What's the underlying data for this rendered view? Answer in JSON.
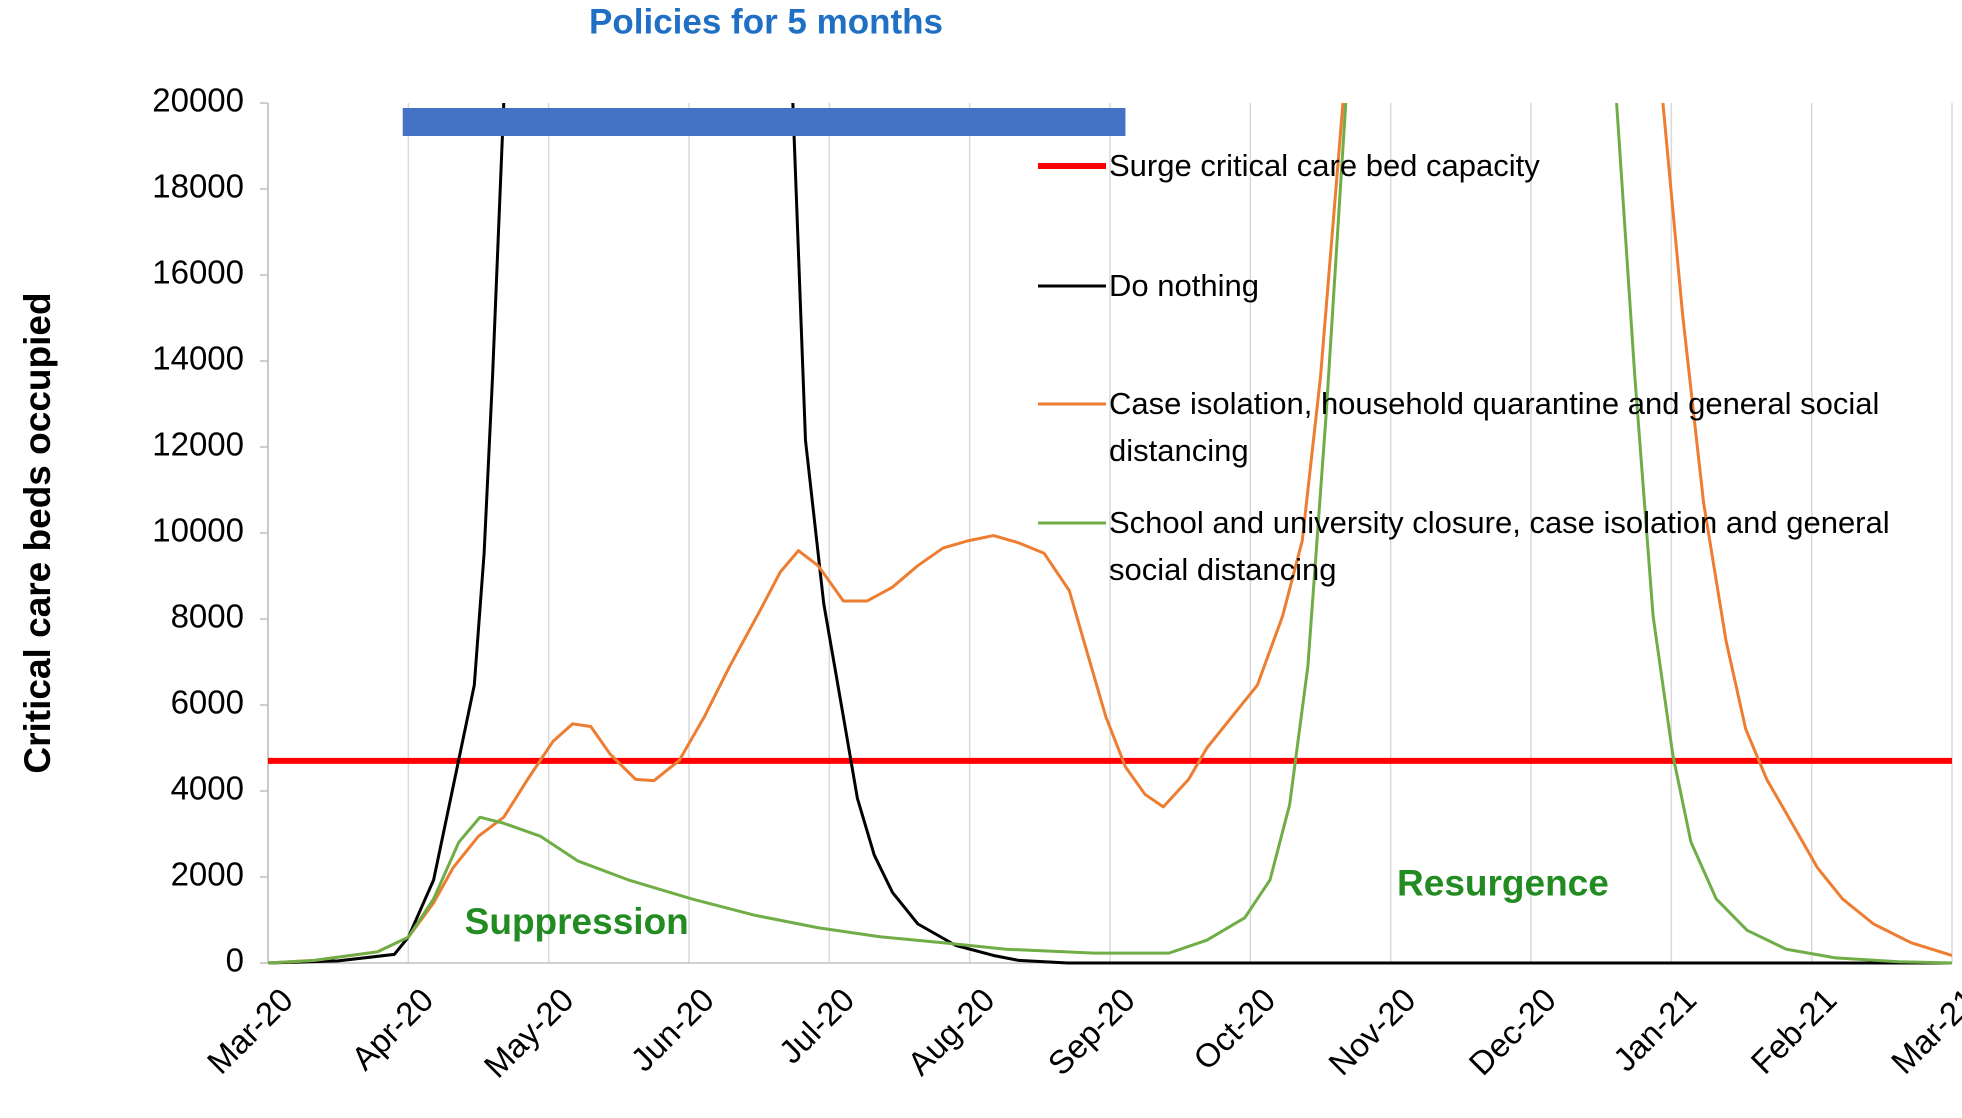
{
  "chart_data": {
    "type": "line",
    "title": "Policies for 5 months",
    "y_label": "Critical care beds occupied",
    "xlim": [
      0,
      12
    ],
    "xticks": [
      {
        "value": 0,
        "label": "Mar-20"
      },
      {
        "value": 1,
        "label": "Apr-20"
      },
      {
        "value": 2,
        "label": "May-20"
      },
      {
        "value": 3,
        "label": "Jun-20"
      },
      {
        "value": 4,
        "label": "Jul-20"
      },
      {
        "value": 5,
        "label": "Aug-20"
      },
      {
        "value": 6,
        "label": "Sep-20"
      },
      {
        "value": 7,
        "label": "Oct-20"
      },
      {
        "value": 8,
        "label": "Nov-20"
      },
      {
        "value": 9,
        "label": "Dec-20"
      },
      {
        "value": 10,
        "label": "Jan-21"
      },
      {
        "value": 11,
        "label": "Feb-21"
      },
      {
        "value": 12,
        "label": "Mar-21"
      }
    ],
    "ylim": [
      0,
      20000
    ],
    "yticks": [
      0,
      2000,
      4000,
      6000,
      8000,
      10000,
      12000,
      14000,
      16000,
      18000,
      20000
    ],
    "x_grid": true,
    "legend": "upper right",
    "policy_period": {
      "x": [
        0.96,
        6.11
      ],
      "color": "#4472c4"
    },
    "annotations": [
      {
        "text": "Suppression",
        "x": 2.2,
        "y": 900,
        "color": "#228b22"
      },
      {
        "text": "Resurgence",
        "x": 8.8,
        "y": 1800,
        "color": "#228b22"
      }
    ],
    "series": [
      {
        "name": "Surge critical care bed capacity",
        "color": "#ff0000",
        "width": 6,
        "x": [
          0,
          12
        ],
        "values": [
          4700,
          4700
        ]
      },
      {
        "name": "Do nothing",
        "color": "#000000",
        "width": 3,
        "x": [
          0,
          0.5,
          0.9,
          1.0,
          1.18,
          1.33,
          1.47,
          1.54,
          1.6,
          1.68,
          null,
          3.74,
          3.83,
          3.96,
          4.1,
          4.2,
          4.32,
          4.45,
          4.63,
          4.9,
          5.17,
          5.35,
          5.7,
          12
        ],
        "values": [
          0,
          50,
          200,
          600,
          1930,
          4270,
          6460,
          9530,
          13630,
          20000,
          null,
          20000,
          12160,
          8360,
          5730,
          3830,
          2510,
          1640,
          910,
          410,
          175,
          60,
          0,
          0
        ]
      },
      {
        "name": "Case isolation, household quarantine and general social distancing",
        "color": "#ed7d31",
        "width": 3,
        "x": [
          0,
          0.33,
          0.78,
          1.0,
          1.18,
          1.32,
          1.5,
          1.68,
          1.85,
          2.03,
          2.17,
          2.3,
          2.44,
          2.62,
          2.75,
          2.93,
          3.11,
          3.29,
          3.51,
          3.65,
          3.78,
          3.92,
          4.1,
          4.27,
          4.45,
          4.63,
          4.81,
          4.99,
          5.17,
          5.35,
          5.53,
          5.71,
          5.84,
          5.97,
          6.11,
          6.25,
          6.38,
          6.56,
          6.69,
          6.87,
          7.05,
          7.23,
          7.37,
          7.5,
          7.66,
          null,
          9.94,
          10.08,
          10.23,
          10.39,
          10.53,
          10.68,
          10.86,
          11.04,
          11.22,
          11.44,
          11.71,
          12
        ],
        "values": [
          0,
          60,
          260,
          600,
          1400,
          2220,
          2950,
          3390,
          4270,
          5150,
          5560,
          5500,
          4850,
          4270,
          4240,
          4710,
          5730,
          6900,
          8220,
          9090,
          9590,
          9240,
          8420,
          8420,
          8740,
          9240,
          9650,
          9820,
          9940,
          9770,
          9530,
          8660,
          7190,
          5730,
          4560,
          3920,
          3630,
          4270,
          5000,
          5730,
          6460,
          8070,
          9820,
          13630,
          20000,
          null,
          20000,
          15090,
          10700,
          7490,
          5440,
          4270,
          3250,
          2220,
          1490,
          910,
          470,
          175
        ]
      },
      {
        "name": "School and university closure, case isolation and general social distancing",
        "color": "#70ad47",
        "width": 3,
        "x": [
          0,
          0.33,
          0.78,
          1.0,
          1.18,
          1.36,
          1.51,
          1.68,
          1.94,
          2.21,
          2.57,
          3.02,
          3.47,
          3.92,
          4.36,
          4.81,
          5.26,
          5.89,
          6.42,
          6.69,
          6.96,
          7.14,
          7.28,
          7.41,
          7.54,
          7.68,
          null,
          9.61,
          9.74,
          9.87,
          10.01,
          10.14,
          10.32,
          10.54,
          10.82,
          11.17,
          11.62,
          12
        ],
        "values": [
          0,
          60,
          260,
          600,
          1490,
          2810,
          3390,
          3250,
          2950,
          2370,
          1930,
          1490,
          1110,
          820,
          610,
          470,
          320,
          230,
          230,
          530,
          1050,
          1930,
          3680,
          6900,
          12750,
          20000,
          null,
          20000,
          13630,
          8070,
          4850,
          2810,
          1490,
          760,
          320,
          120,
          30,
          0
        ]
      }
    ]
  }
}
